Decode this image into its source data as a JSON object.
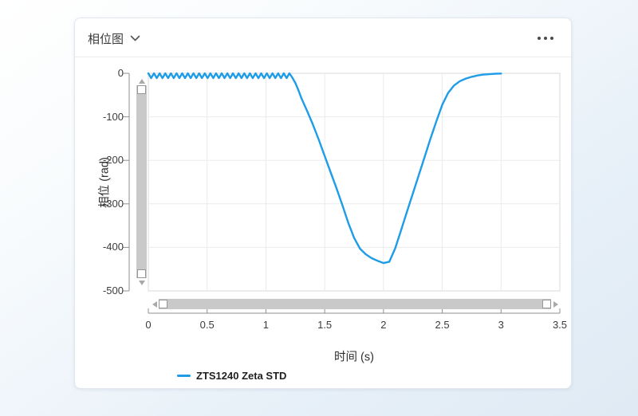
{
  "colors": {
    "series": "#1e9ce8",
    "grid": "#ebebeb",
    "plot_border": "#d9d9d9",
    "axis_line": "#8f8f8f",
    "scrollbar_track": "#c9c9c9",
    "scrollbar_arrow": "#a9a9a9"
  },
  "icons": {
    "title_dropdown": "chevron-down-icon",
    "more_menu": "more-options-icon",
    "scroll_up": "triangle-up-icon",
    "scroll_down": "triangle-down-icon",
    "scroll_left": "triangle-left-icon",
    "scroll_right": "triangle-right-icon"
  },
  "chart_data": {
    "type": "line",
    "title": "相位图",
    "xlabel": "时间 (s)",
    "ylabel": "相位 (rad)",
    "xlim": [
      0,
      3.5
    ],
    "ylim": [
      -500,
      0
    ],
    "grid": true,
    "legend_position": "bottom-left",
    "xticks": {
      "values": [
        0,
        0.5,
        1,
        1.5,
        2,
        2.5,
        3,
        3.5
      ],
      "labels": [
        "0",
        "0.5",
        "1",
        "1.5",
        "2",
        "2.5",
        "3",
        "3.5"
      ]
    },
    "yticks": {
      "values": [
        0,
        -100,
        -200,
        -300,
        -400,
        -500
      ],
      "labels": [
        "0",
        "-100",
        "-200",
        "-300",
        "-400",
        "-500"
      ]
    },
    "series": [
      {
        "name": "ZTS1240 Zeta STD",
        "color": "#1e9ce8",
        "points": [
          [
            0,
            0
          ],
          [
            0.012,
            -5.5
          ],
          [
            0.024,
            -11
          ],
          [
            0.036,
            -5.5
          ],
          [
            0.048,
            0
          ],
          [
            0.06,
            -5.5
          ],
          [
            0.072,
            -11
          ],
          [
            0.084,
            -5.5
          ],
          [
            0.096,
            0
          ],
          [
            0.108,
            -5.5
          ],
          [
            0.12,
            -11
          ],
          [
            0.132,
            -5.5
          ],
          [
            0.144,
            0
          ],
          [
            0.156,
            -5.5
          ],
          [
            0.168,
            -11
          ],
          [
            0.18,
            -5.5
          ],
          [
            0.192,
            0
          ],
          [
            0.204,
            -5.5
          ],
          [
            0.216,
            -11
          ],
          [
            0.228,
            -5.5
          ],
          [
            0.24,
            0
          ],
          [
            0.252,
            -5.5
          ],
          [
            0.264,
            -11
          ],
          [
            0.276,
            -5.5
          ],
          [
            0.288,
            0
          ],
          [
            0.3,
            -5.5
          ],
          [
            0.312,
            -11
          ],
          [
            0.324,
            -5.5
          ],
          [
            0.336,
            0
          ],
          [
            0.348,
            -5.5
          ],
          [
            0.36,
            -11
          ],
          [
            0.372,
            -5.5
          ],
          [
            0.384,
            0
          ],
          [
            0.396,
            -5.5
          ],
          [
            0.408,
            -11
          ],
          [
            0.42,
            -5.5
          ],
          [
            0.432,
            0
          ],
          [
            0.444,
            -5.5
          ],
          [
            0.456,
            -11
          ],
          [
            0.468,
            -5.5
          ],
          [
            0.48,
            0
          ],
          [
            0.492,
            -5.5
          ],
          [
            0.504,
            -11
          ],
          [
            0.516,
            -5.5
          ],
          [
            0.528,
            0
          ],
          [
            0.54,
            -5.5
          ],
          [
            0.552,
            -11
          ],
          [
            0.564,
            -5.5
          ],
          [
            0.576,
            0
          ],
          [
            0.588,
            -5.5
          ],
          [
            0.6,
            -11
          ],
          [
            0.612,
            -5.5
          ],
          [
            0.624,
            0
          ],
          [
            0.636,
            -5.5
          ],
          [
            0.648,
            -11
          ],
          [
            0.66,
            -5.5
          ],
          [
            0.672,
            0
          ],
          [
            0.684,
            -5.5
          ],
          [
            0.696,
            -11
          ],
          [
            0.708,
            -5.5
          ],
          [
            0.72,
            0
          ],
          [
            0.732,
            -5.5
          ],
          [
            0.744,
            -11
          ],
          [
            0.756,
            -5.5
          ],
          [
            0.768,
            0
          ],
          [
            0.78,
            -5.5
          ],
          [
            0.792,
            -11
          ],
          [
            0.804,
            -5.5
          ],
          [
            0.816,
            0
          ],
          [
            0.828,
            -5.5
          ],
          [
            0.84,
            -11
          ],
          [
            0.852,
            -5.5
          ],
          [
            0.864,
            0
          ],
          [
            0.876,
            -5.5
          ],
          [
            0.888,
            -11
          ],
          [
            0.9,
            -5.5
          ],
          [
            0.912,
            0
          ],
          [
            0.924,
            -5.5
          ],
          [
            0.936,
            -11
          ],
          [
            0.948,
            -5.5
          ],
          [
            0.96,
            0
          ],
          [
            0.972,
            -5.5
          ],
          [
            0.984,
            -11
          ],
          [
            0.996,
            -5.5
          ],
          [
            1.008,
            0
          ],
          [
            1.02,
            -5.5
          ],
          [
            1.032,
            -11
          ],
          [
            1.044,
            -5.5
          ],
          [
            1.056,
            0
          ],
          [
            1.068,
            -5.5
          ],
          [
            1.08,
            -11
          ],
          [
            1.092,
            -5.5
          ],
          [
            1.104,
            0
          ],
          [
            1.116,
            -5.5
          ],
          [
            1.128,
            -11
          ],
          [
            1.14,
            -5.5
          ],
          [
            1.152,
            0
          ],
          [
            1.164,
            -5.5
          ],
          [
            1.176,
            -11
          ],
          [
            1.188,
            -5.5
          ],
          [
            1.2,
            0
          ],
          [
            1.225,
            -10
          ],
          [
            1.25,
            -22
          ],
          [
            1.275,
            -38
          ],
          [
            1.3,
            -56
          ],
          [
            1.35,
            -86
          ],
          [
            1.4,
            -118
          ],
          [
            1.45,
            -153
          ],
          [
            1.5,
            -190
          ],
          [
            1.55,
            -227
          ],
          [
            1.6,
            -264
          ],
          [
            1.65,
            -303
          ],
          [
            1.7,
            -343
          ],
          [
            1.75,
            -378
          ],
          [
            1.8,
            -403
          ],
          [
            1.85,
            -416
          ],
          [
            1.9,
            -425
          ],
          [
            1.95,
            -431
          ],
          [
            2.0,
            -436
          ],
          [
            2.05,
            -433
          ],
          [
            2.1,
            -402
          ],
          [
            2.15,
            -360
          ],
          [
            2.2,
            -318
          ],
          [
            2.25,
            -276
          ],
          [
            2.3,
            -234
          ],
          [
            2.35,
            -192
          ],
          [
            2.4,
            -150
          ],
          [
            2.45,
            -110
          ],
          [
            2.5,
            -72
          ],
          [
            2.55,
            -45
          ],
          [
            2.6,
            -28
          ],
          [
            2.65,
            -18
          ],
          [
            2.7,
            -12
          ],
          [
            2.75,
            -8
          ],
          [
            2.8,
            -5
          ],
          [
            2.85,
            -3
          ],
          [
            2.9,
            -2
          ],
          [
            2.95,
            -1
          ],
          [
            3.0,
            -0.5
          ]
        ]
      }
    ]
  }
}
